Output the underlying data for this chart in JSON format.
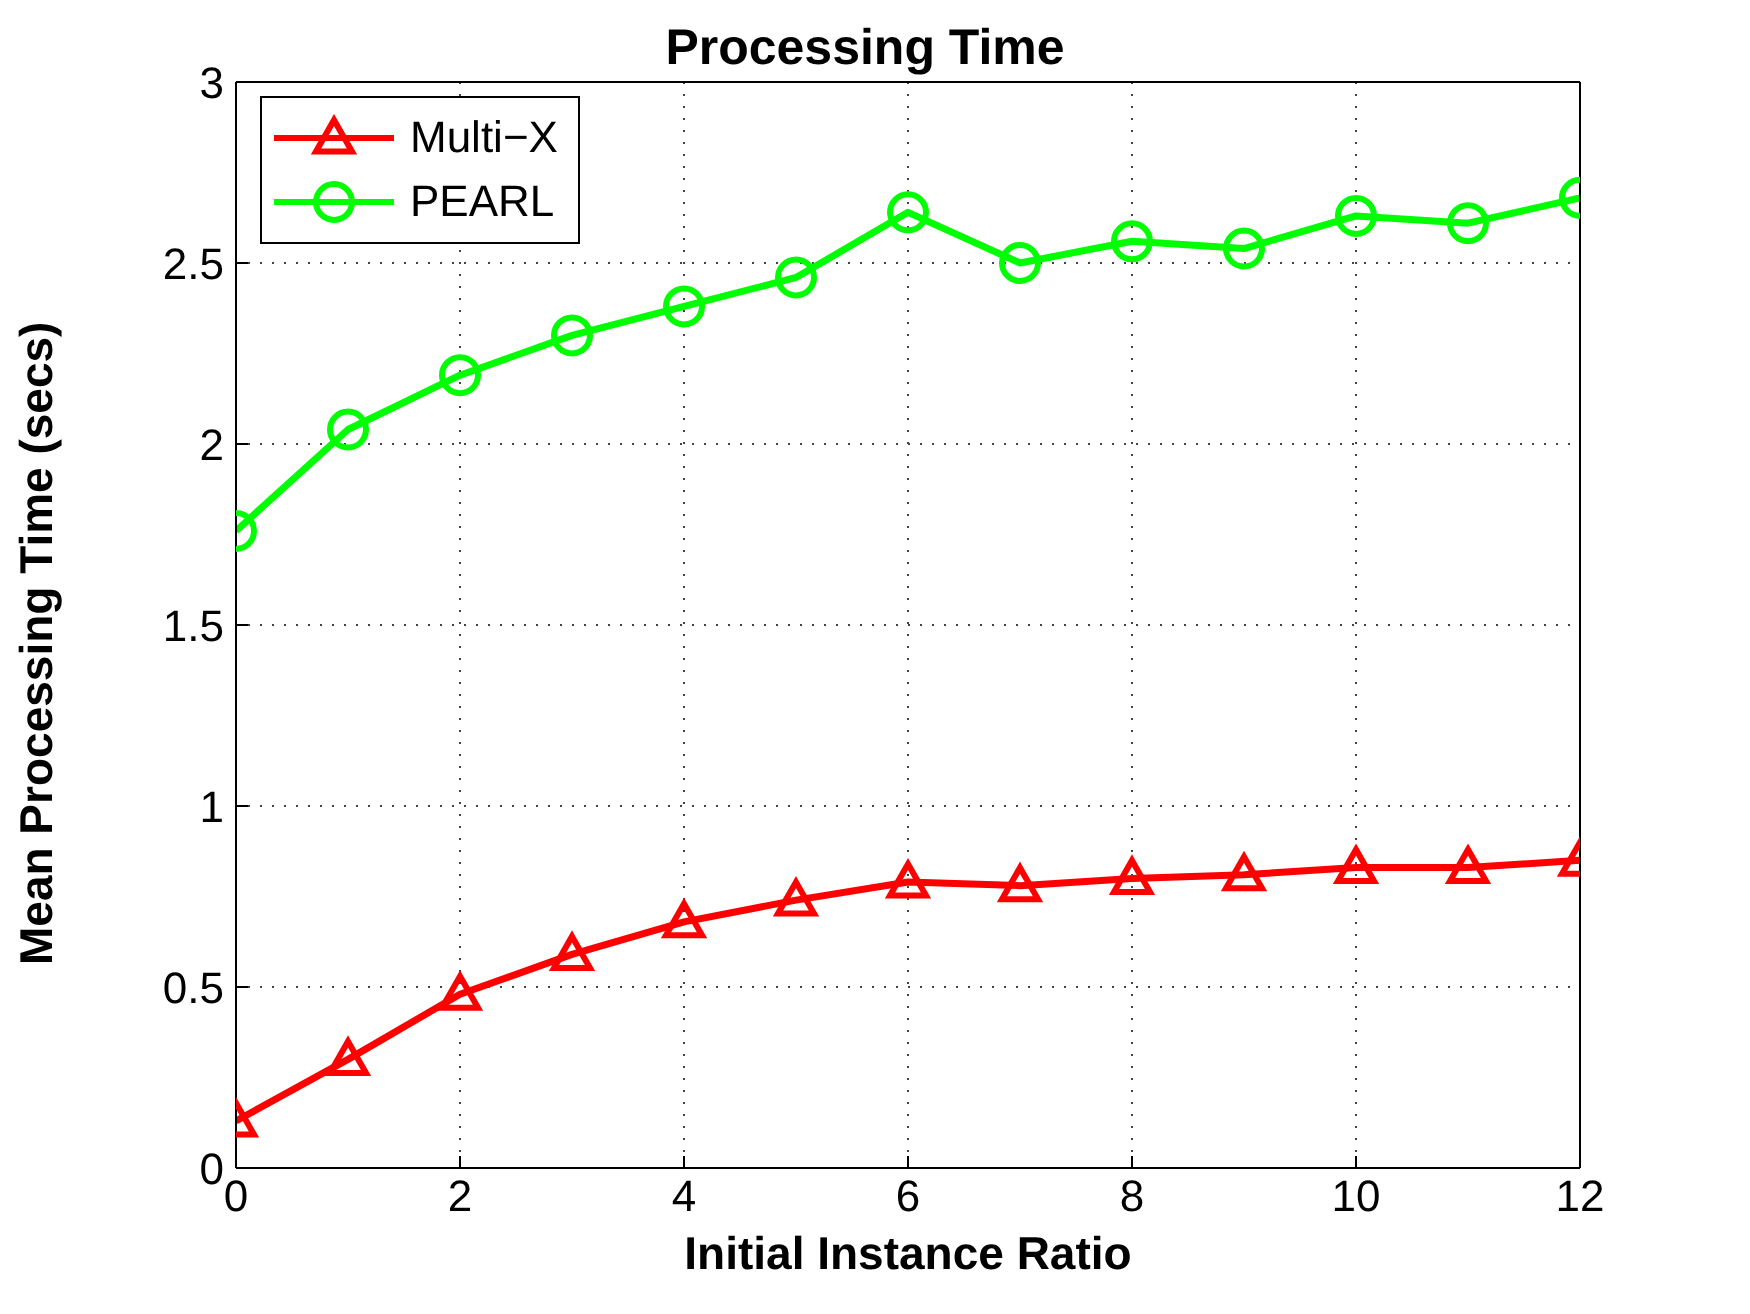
{
  "chart_data": {
    "type": "line",
    "title": "Processing Time",
    "xlabel": "Initial Instance Ratio",
    "ylabel": "Mean Processing Time (secs)",
    "x": [
      0,
      1,
      2,
      3,
      4,
      5,
      6,
      7,
      8,
      9,
      10,
      11,
      12
    ],
    "series": [
      {
        "name": "Multi−X",
        "color": "#ff0000",
        "marker": "triangle",
        "values": [
          0.13,
          0.3,
          0.48,
          0.59,
          0.68,
          0.74,
          0.79,
          0.78,
          0.8,
          0.81,
          0.83,
          0.83,
          0.85
        ]
      },
      {
        "name": "PEARL",
        "color": "#00ff00",
        "marker": "circle",
        "values": [
          1.76,
          2.04,
          2.19,
          2.3,
          2.38,
          2.46,
          2.64,
          2.5,
          2.56,
          2.54,
          2.63,
          2.61,
          2.68
        ]
      }
    ],
    "xlim": [
      0,
      12
    ],
    "xticks": [
      0,
      2,
      4,
      6,
      8,
      10,
      12
    ],
    "ylim": [
      0,
      3
    ],
    "yticks": [
      0,
      0.5,
      1,
      1.5,
      2,
      2.5,
      3
    ],
    "grid": true,
    "legend": "top left",
    "line_style": "solid"
  }
}
